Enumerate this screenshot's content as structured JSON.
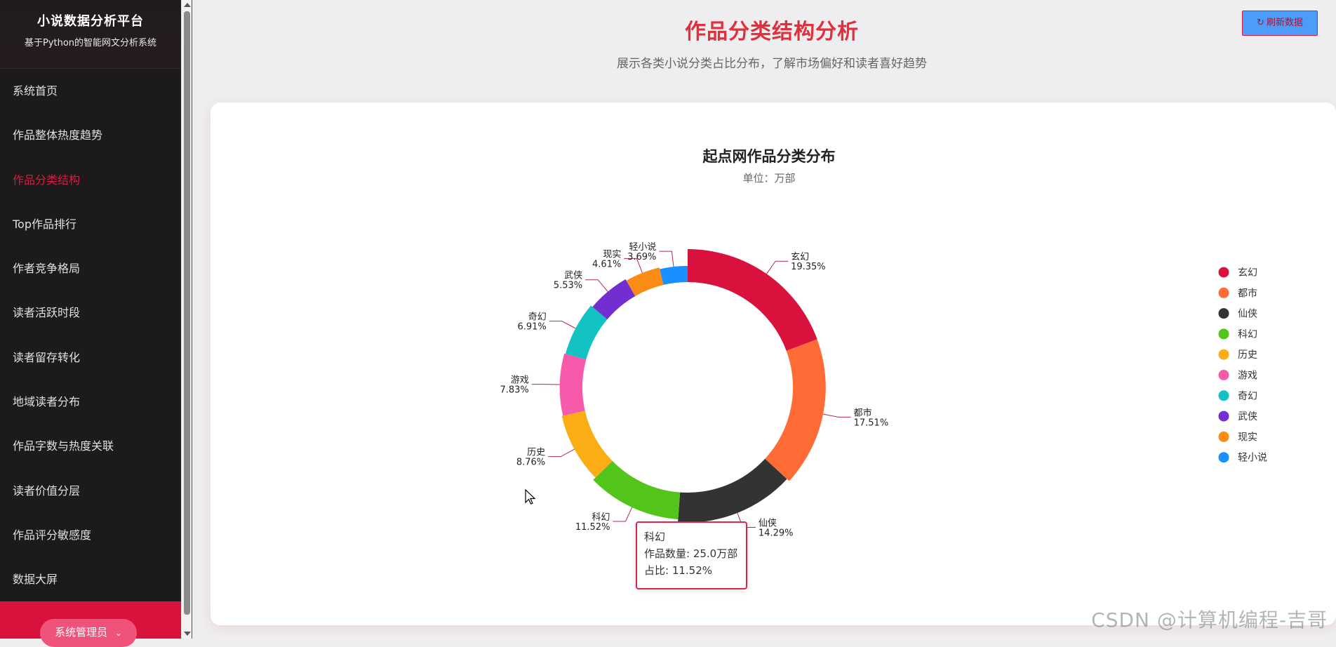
{
  "sidebar": {
    "brand_title": "小说数据分析平台",
    "brand_subtitle": "基于Python的智能网文分析系统",
    "items": [
      {
        "label": "系统首页"
      },
      {
        "label": "作品整体热度趋势"
      },
      {
        "label": "作品分类结构",
        "active": true
      },
      {
        "label": "Top作品排行"
      },
      {
        "label": "作者竞争格局"
      },
      {
        "label": "读者活跃时段"
      },
      {
        "label": "读者留存转化"
      },
      {
        "label": "地域读者分布"
      },
      {
        "label": "作品字数与热度关联"
      },
      {
        "label": "读者价值分层"
      },
      {
        "label": "作品评分敏感度"
      },
      {
        "label": "数据大屏"
      }
    ],
    "admin_label": "系统管理员",
    "admin_icon": "chevron-down-icon"
  },
  "header": {
    "title": "作品分类结构分析",
    "subtitle": "展示各类小说分类占比分布，了解市场偏好和读者喜好趋势",
    "refresh_label": "刷新数据",
    "refresh_icon": "refresh-icon"
  },
  "chart_data": {
    "type": "pie",
    "title": "起点网作品分类分布",
    "subtitle": "单位：万部",
    "legend_position": "right",
    "categories": [
      "玄幻",
      "都市",
      "仙侠",
      "科幻",
      "历史",
      "游戏",
      "奇幻",
      "武侠",
      "现实",
      "轻小说"
    ],
    "percents": [
      19.35,
      17.51,
      14.29,
      11.52,
      8.76,
      7.83,
      6.91,
      5.53,
      4.61,
      3.69
    ],
    "percent_labels": [
      "19.35%",
      "17.51%",
      "14.29%",
      "11.52%",
      "8.76%",
      "7.83%",
      "6.91%",
      "5.53%",
      "4.61%",
      "3.69%"
    ],
    "colors": [
      "#d9123d",
      "#ff6b35",
      "#333333",
      "#52c41a",
      "#faad14",
      "#f759ab",
      "#13c2c2",
      "#722ed1",
      "#fa8c16",
      "#1890ff"
    ],
    "highlighted": "玄幻"
  },
  "tooltip": {
    "name": "科幻",
    "count_line": "作品数量: 25.0万部",
    "percent_line": "占比: 11.52%"
  },
  "watermark": "CSDN @计算机编程-吉哥"
}
